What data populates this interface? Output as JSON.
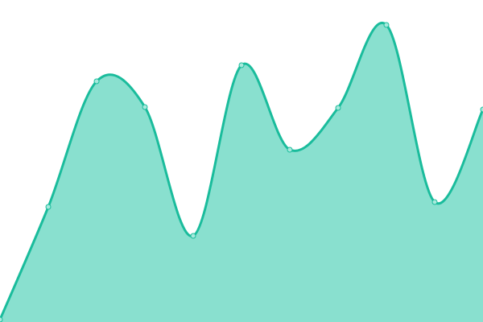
{
  "chart_data": {
    "type": "area",
    "title": "",
    "xlabel": "",
    "ylabel": "",
    "x": [
      0,
      1,
      2,
      3,
      4,
      5,
      6,
      7,
      8,
      9,
      10
    ],
    "values": [
      3,
      143,
      299,
      267,
      107,
      319,
      214,
      266,
      369,
      149,
      264
    ],
    "xlim": [
      0,
      10
    ],
    "ylim": [
      0,
      400
    ],
    "grid": false,
    "axes_visible": false,
    "smooth": true,
    "markers": true,
    "colors": {
      "line": "#1abc9c",
      "fill": "#89e0cf",
      "marker_fill": "#a8eadd",
      "marker_stroke": "#1abc9c"
    }
  }
}
